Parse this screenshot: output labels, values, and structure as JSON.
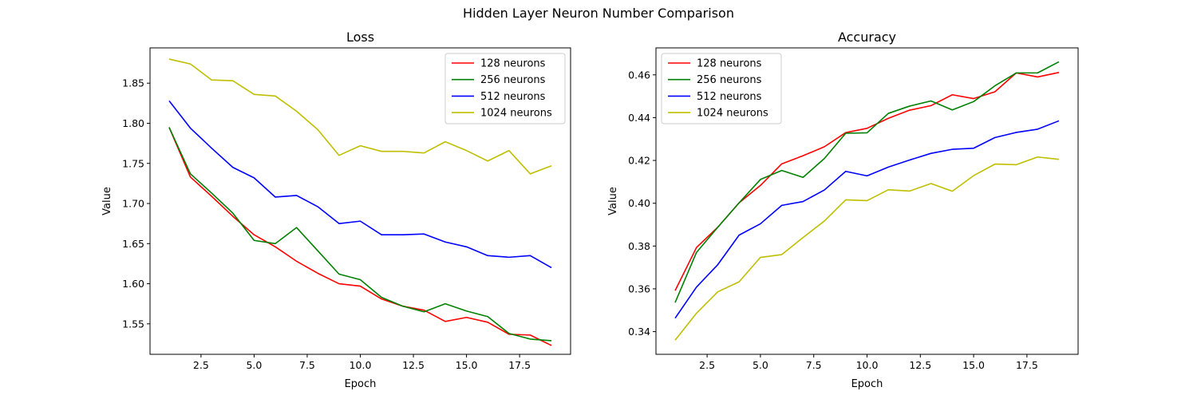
{
  "title": "Hidden Layer Neuron Number Comparison",
  "colors": {
    "128 neurons": "#ff0000",
    "256 neurons": "#008000",
    "512 neurons": "#0000ff",
    "1024 neurons": "#bfbf00"
  },
  "chart_data": [
    {
      "type": "line",
      "title": "Loss",
      "xlabel": "Epoch",
      "ylabel": "Value",
      "xlim": [
        0.1,
        19.9
      ],
      "ylim": [
        1.512,
        1.894
      ],
      "xticks": [
        2.5,
        5.0,
        7.5,
        10.0,
        12.5,
        15.0,
        17.5
      ],
      "yticks": [
        1.55,
        1.6,
        1.65,
        1.7,
        1.75,
        1.8,
        1.85
      ],
      "grid": false,
      "legend": "upper right",
      "x": [
        1,
        2,
        3,
        4,
        5,
        6,
        7,
        8,
        9,
        10,
        11,
        12,
        13,
        14,
        15,
        16,
        17,
        18,
        19
      ],
      "series": [
        {
          "name": "128 neurons",
          "color": "#ff0000",
          "values": [
            1.795,
            1.733,
            1.709,
            1.684,
            1.661,
            1.646,
            1.628,
            1.613,
            1.6,
            1.597,
            1.581,
            1.572,
            1.567,
            1.553,
            1.558,
            1.552,
            1.537,
            1.536,
            1.523
          ]
        },
        {
          "name": "256 neurons",
          "color": "#008000",
          "values": [
            1.795,
            1.737,
            1.713,
            1.688,
            1.654,
            1.65,
            1.67,
            1.641,
            1.612,
            1.605,
            1.583,
            1.572,
            1.565,
            1.575,
            1.566,
            1.559,
            1.538,
            1.531,
            1.529
          ]
        },
        {
          "name": "512 neurons",
          "color": "#0000ff",
          "values": [
            1.828,
            1.794,
            1.769,
            1.745,
            1.732,
            1.708,
            1.71,
            1.696,
            1.675,
            1.678,
            1.661,
            1.661,
            1.662,
            1.652,
            1.646,
            1.635,
            1.633,
            1.635,
            1.62
          ]
        },
        {
          "name": "1024 neurons",
          "color": "#bfbf00",
          "values": [
            1.88,
            1.874,
            1.854,
            1.853,
            1.836,
            1.834,
            1.815,
            1.792,
            1.76,
            1.772,
            1.765,
            1.765,
            1.763,
            1.777,
            1.766,
            1.753,
            1.766,
            1.737,
            1.747
          ]
        }
      ]
    },
    {
      "type": "line",
      "title": "Accuracy",
      "xlabel": "Epoch",
      "ylabel": "Value",
      "xlim": [
        0.1,
        19.9
      ],
      "ylim": [
        0.3294,
        0.4726
      ],
      "xticks": [
        2.5,
        5.0,
        7.5,
        10.0,
        12.5,
        15.0,
        17.5
      ],
      "yticks": [
        0.34,
        0.36,
        0.38,
        0.4,
        0.42,
        0.44,
        0.46
      ],
      "grid": false,
      "legend": "upper left",
      "x": [
        1,
        2,
        3,
        4,
        5,
        6,
        7,
        8,
        9,
        10,
        11,
        12,
        13,
        14,
        15,
        16,
        17,
        18,
        19
      ],
      "series": [
        {
          "name": "128 neurons",
          "color": "#ff0000",
          "values": [
            0.3592,
            0.3793,
            0.3888,
            0.4002,
            0.4083,
            0.4184,
            0.4222,
            0.4264,
            0.433,
            0.435,
            0.4397,
            0.4435,
            0.4456,
            0.4507,
            0.4489,
            0.4521,
            0.4609,
            0.459,
            0.4611
          ]
        },
        {
          "name": "256 neurons",
          "color": "#008000",
          "values": [
            0.3536,
            0.377,
            0.3888,
            0.4002,
            0.4111,
            0.4153,
            0.4121,
            0.4209,
            0.4327,
            0.4329,
            0.442,
            0.4454,
            0.4478,
            0.4436,
            0.4475,
            0.4549,
            0.4609,
            0.4609,
            0.4661
          ]
        },
        {
          "name": "512 neurons",
          "color": "#0000ff",
          "values": [
            0.3463,
            0.3608,
            0.3713,
            0.3851,
            0.3904,
            0.399,
            0.4008,
            0.4062,
            0.4149,
            0.4128,
            0.4169,
            0.4202,
            0.4233,
            0.4252,
            0.4257,
            0.4307,
            0.4331,
            0.4346,
            0.4385
          ]
        },
        {
          "name": "1024 neurons",
          "color": "#bfbf00",
          "values": [
            0.336,
            0.3486,
            0.3586,
            0.3633,
            0.3747,
            0.376,
            0.384,
            0.3917,
            0.4016,
            0.4012,
            0.4063,
            0.4057,
            0.4092,
            0.4056,
            0.4129,
            0.4183,
            0.418,
            0.4216,
            0.4205
          ]
        }
      ]
    }
  ]
}
